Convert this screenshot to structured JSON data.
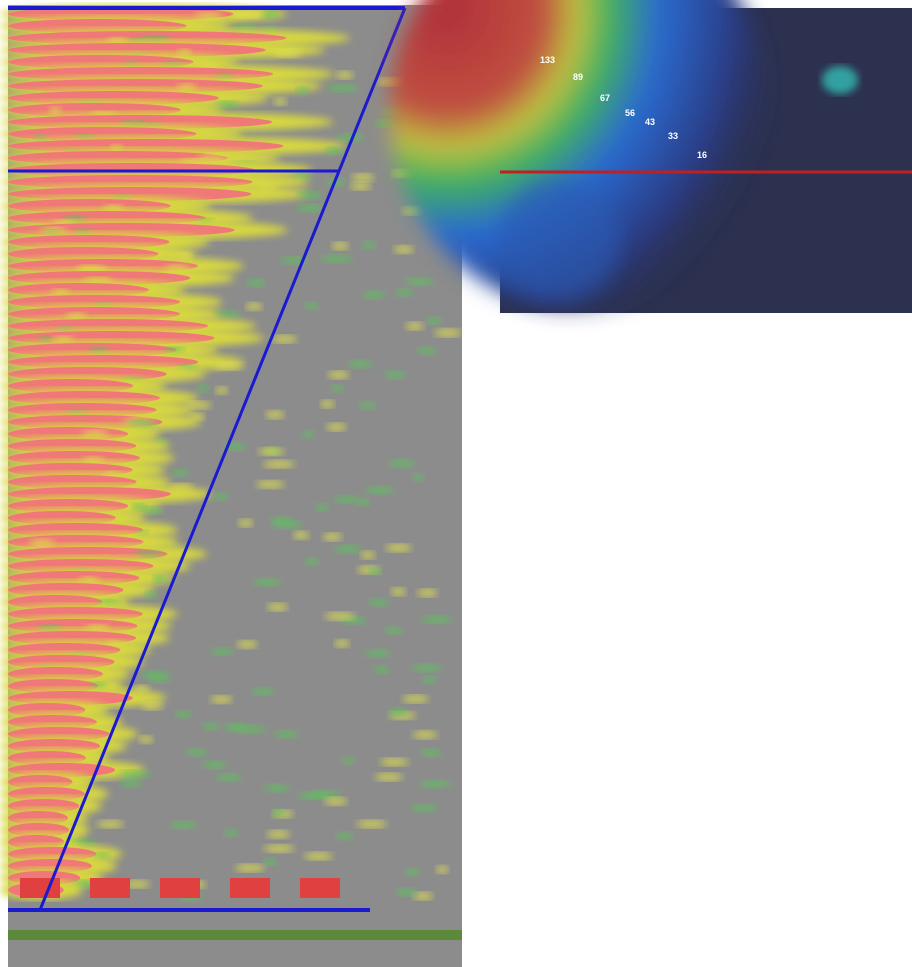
{
  "right_heatmap": {
    "labels": [
      "133",
      "89",
      "67",
      "56",
      "43",
      "33",
      "16"
    ]
  }
}
